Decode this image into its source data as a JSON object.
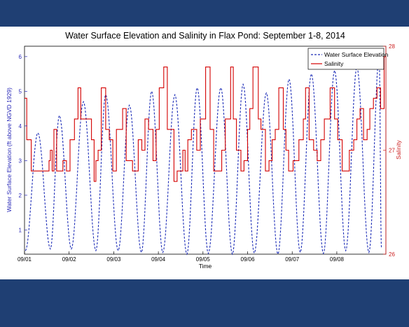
{
  "chart_data": {
    "type": "line",
    "title": "Water Surface Elevation and Salinity in Flax Pond: September 1-8, 2014",
    "xlabel": "Time",
    "ylabel_left": "Water Surface Elevation (ft above NGVD 1929)",
    "ylabel_right": "Salinity",
    "x_ticks": [
      "09/01",
      "09/02",
      "09/03",
      "09/04",
      "09/05",
      "09/06",
      "09/07",
      "09/08"
    ],
    "xlim": [
      0,
      8.1
    ],
    "ylim_left": [
      0.3,
      6.3
    ],
    "y_ticks_left": [
      "1",
      "2",
      "3",
      "4",
      "5",
      "6"
    ],
    "ylim_right": [
      26,
      28
    ],
    "y_ticks_right": [
      "26",
      "27",
      "28"
    ],
    "legend_position": "top-right",
    "colors": {
      "elevation": "#1f2fb8",
      "salinity": "#d40000",
      "left_axis": "#2929b8",
      "right_axis": "#cc2020",
      "background": "#1f3f73"
    },
    "series": [
      {
        "name": "Water Surface Elevation",
        "axis": "left",
        "style": "dashed",
        "low_times": [
          0.02,
          0.58,
          1.05,
          1.6,
          2.1,
          2.62,
          3.1,
          3.64,
          4.12,
          4.66,
          5.15,
          5.68,
          6.18,
          6.7,
          7.2,
          7.72,
          8.0
        ],
        "low_values": [
          0.4,
          0.45,
          0.45,
          0.4,
          0.4,
          0.35,
          0.35,
          0.3,
          0.32,
          0.3,
          0.33,
          0.3,
          0.35,
          0.32,
          0.4,
          0.35,
          0.5
        ],
        "high_times": [
          0.3,
          0.78,
          1.32,
          1.82,
          2.35,
          2.85,
          3.37,
          3.87,
          4.4,
          4.9,
          5.42,
          5.93,
          6.43,
          6.95,
          7.45,
          7.95
        ],
        "high_values": [
          3.8,
          4.3,
          4.7,
          4.9,
          4.6,
          5.0,
          4.9,
          5.1,
          5.1,
          5.2,
          4.95,
          5.35,
          5.5,
          5.6,
          5.7,
          6.0
        ]
      },
      {
        "name": "Salinity",
        "axis": "right",
        "style": "step",
        "x": [
          0.0,
          0.05,
          0.15,
          0.55,
          0.58,
          0.62,
          0.66,
          0.72,
          0.86,
          0.94,
          1.02,
          1.12,
          1.2,
          1.26,
          1.5,
          1.56,
          1.6,
          1.65,
          1.72,
          1.82,
          1.9,
          1.98,
          2.06,
          2.2,
          2.28,
          2.36,
          2.42,
          2.55,
          2.63,
          2.7,
          2.78,
          2.88,
          2.95,
          3.02,
          3.12,
          3.2,
          3.35,
          3.42,
          3.55,
          3.6,
          3.66,
          3.74,
          3.86,
          3.94,
          4.06,
          4.16,
          4.24,
          4.36,
          4.42,
          4.5,
          4.62,
          4.68,
          4.75,
          4.85,
          4.92,
          5.0,
          5.05,
          5.12,
          5.24,
          5.3,
          5.4,
          5.48,
          5.55,
          5.62,
          5.7,
          5.8,
          5.86,
          5.92,
          6.02,
          6.15,
          6.25,
          6.3,
          6.38,
          6.48,
          6.56,
          6.64,
          6.72,
          6.85,
          6.95,
          7.02,
          7.12,
          7.2,
          7.28,
          7.38,
          7.45,
          7.52,
          7.6,
          7.68,
          7.74,
          7.82,
          7.9,
          7.98,
          8.06
        ],
        "y": [
          27.5,
          27.1,
          26.8,
          26.9,
          27.0,
          26.8,
          27.2,
          26.8,
          26.9,
          26.8,
          27.1,
          27.3,
          27.6,
          27.3,
          27.1,
          26.7,
          26.9,
          27.0,
          27.6,
          27.2,
          27.1,
          26.8,
          27.2,
          27.4,
          26.9,
          26.9,
          26.8,
          27.1,
          27.0,
          27.3,
          27.2,
          26.9,
          27.2,
          27.6,
          27.8,
          27.2,
          26.7,
          26.8,
          27.0,
          26.8,
          27.1,
          27.2,
          27.0,
          27.3,
          27.8,
          27.2,
          26.8,
          26.8,
          27.0,
          27.3,
          27.8,
          27.3,
          27.0,
          26.8,
          26.9,
          27.2,
          27.4,
          27.8,
          27.3,
          27.2,
          26.8,
          26.9,
          27.1,
          27.2,
          27.6,
          27.2,
          27.0,
          26.8,
          26.9,
          27.1,
          27.3,
          27.6,
          27.1,
          27.0,
          26.9,
          27.1,
          27.3,
          27.6,
          27.3,
          27.1,
          26.8,
          26.8,
          27.0,
          27.1,
          27.3,
          27.4,
          27.1,
          27.2,
          27.4,
          27.5,
          27.6,
          27.4,
          27.9
        ]
      }
    ]
  }
}
